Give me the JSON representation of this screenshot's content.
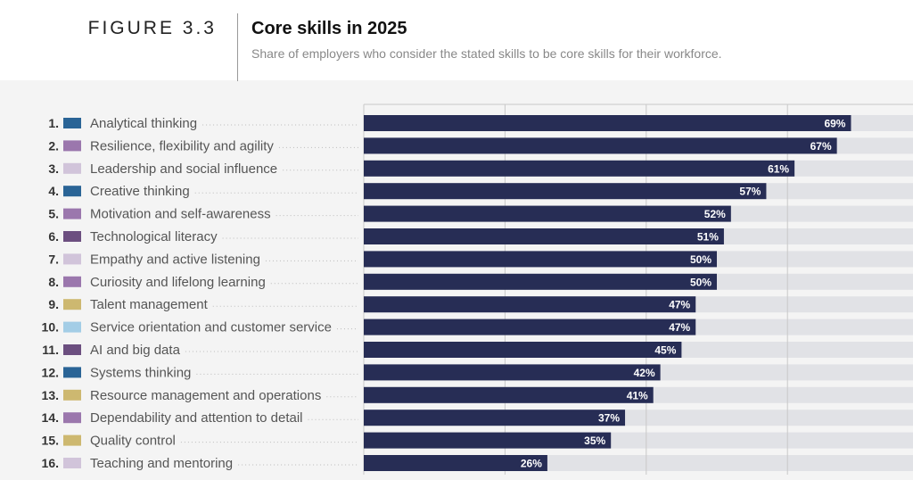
{
  "header": {
    "figure_label": "FIGURE 3.3",
    "title": "Core skills in 2025",
    "subtitle": "Share of employers who consider the stated skills to be core skills for their workforce."
  },
  "colors": {
    "bar": "#272d55",
    "track": "#e1e2e6",
    "grid": "#c8c8c8",
    "cognitive": "#2a6496",
    "self_efficacy": "#9b77ad",
    "working_with_others": "#d1c4da",
    "technology": "#6c4f80",
    "management": "#cdb870",
    "engagement": "#a3cde6"
  },
  "chart_data": {
    "type": "bar",
    "orientation": "horizontal",
    "title": "Core skills in 2025",
    "subtitle": "Share of employers who consider the stated skills to be core skills for their workforce.",
    "xlim": [
      0,
      100
    ],
    "grid": true,
    "unit": "%",
    "categories": [
      "Analytical thinking",
      "Resilience, flexibility and agility",
      "Leadership and social influence",
      "Creative thinking",
      "Motivation and self-awareness",
      "Technological literacy",
      "Empathy and active listening",
      "Curiosity and lifelong learning",
      "Talent management",
      "Service orientation and customer service",
      "AI and big data",
      "Systems thinking",
      "Resource management and operations",
      "Dependability and attention to detail",
      "Quality control",
      "Teaching and mentoring"
    ],
    "ranks": [
      "1.",
      "2.",
      "3.",
      "4.",
      "5.",
      "6.",
      "7.",
      "8.",
      "9.",
      "10.",
      "11.",
      "12.",
      "13.",
      "14.",
      "15.",
      "16."
    ],
    "values": [
      69,
      67,
      61,
      57,
      52,
      51,
      50,
      50,
      47,
      47,
      45,
      42,
      41,
      37,
      35,
      26
    ],
    "labels": [
      "69%",
      "67%",
      "61%",
      "57%",
      "52%",
      "51%",
      "50%",
      "50%",
      "47%",
      "47%",
      "45%",
      "42%",
      "41%",
      "37%",
      "35%",
      "26%"
    ],
    "category_colors": [
      "cognitive",
      "self_efficacy",
      "working_with_others",
      "cognitive",
      "self_efficacy",
      "technology",
      "working_with_others",
      "self_efficacy",
      "management",
      "engagement",
      "technology",
      "cognitive",
      "management",
      "self_efficacy",
      "management",
      "working_with_others"
    ]
  }
}
